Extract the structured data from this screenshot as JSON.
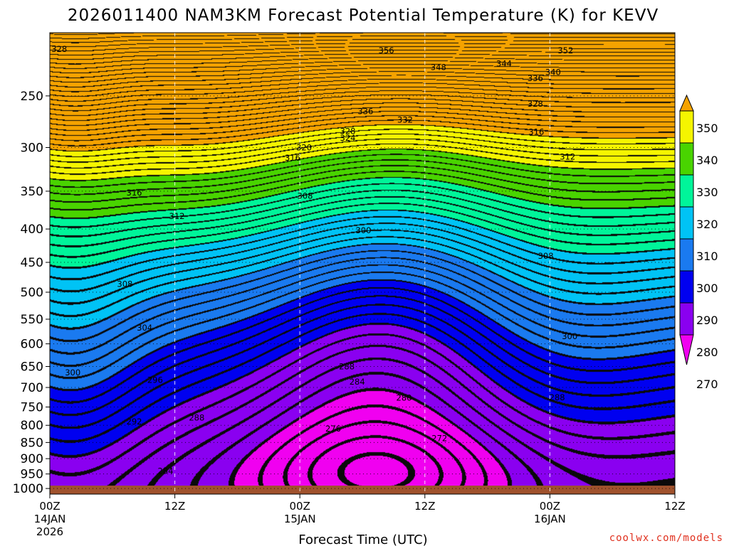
{
  "chart_data": {
    "type": "heatmap",
    "title": "2026011400 NAM3KM Forecast Potential Temperature (K) for KEVV",
    "xlabel": "Forecast Time (UTC)",
    "ylabel": "",
    "credit": "coolwx.com/models",
    "y_axis": {
      "ticks": [
        250,
        300,
        350,
        400,
        450,
        500,
        550,
        600,
        650,
        700,
        750,
        800,
        850,
        900,
        950,
        1000
      ],
      "range": [
        200,
        1020
      ],
      "scale": "log-pressure"
    },
    "x_axis": {
      "ticks": [
        {
          "hours": 0,
          "line1": "00Z",
          "line2": "14JAN",
          "line3": "2026"
        },
        {
          "hours": 12,
          "line1": "12Z",
          "line2": "",
          "line3": ""
        },
        {
          "hours": 24,
          "line1": "00Z",
          "line2": "15JAN",
          "line3": ""
        },
        {
          "hours": 36,
          "line1": "12Z",
          "line2": "",
          "line3": ""
        },
        {
          "hours": 48,
          "line1": "00Z",
          "line2": "16JAN",
          "line3": ""
        },
        {
          "hours": 60,
          "line1": "12Z",
          "line2": "",
          "line3": ""
        }
      ],
      "range": [
        0,
        60
      ]
    },
    "colorbar": {
      "labels": [
        350,
        340,
        330,
        320,
        310,
        300,
        290,
        280,
        270
      ],
      "colors": [
        "#f5a300",
        "#f5f500",
        "#49d400",
        "#00f59a",
        "#00c3f5",
        "#1a7af0",
        "#0000f0",
        "#8a00f0",
        "#f000f0"
      ],
      "bands": [
        {
          "lo": 350,
          "hi": 360,
          "color": "#f5a300"
        },
        {
          "lo": 340,
          "hi": 350,
          "color": "#f5f500"
        },
        {
          "lo": 330,
          "hi": 340,
          "color": "#49d400"
        },
        {
          "lo": 320,
          "hi": 330,
          "color": "#00f59a"
        },
        {
          "lo": 310,
          "hi": 320,
          "color": "#00c3f5"
        },
        {
          "lo": 300,
          "hi": 310,
          "color": "#1a7af0"
        },
        {
          "lo": 290,
          "hi": 300,
          "color": "#0000f0"
        },
        {
          "lo": 280,
          "hi": 290,
          "color": "#8a00f0"
        },
        {
          "lo": 270,
          "hi": 280,
          "color": "#f000f0"
        }
      ]
    },
    "contour_interval": 2,
    "contour_labels": [
      {
        "label": "328",
        "h": 0.9,
        "p": 212
      },
      {
        "label": "356",
        "h": 32.3,
        "p": 213
      },
      {
        "label": "352",
        "h": 49.5,
        "p": 213
      },
      {
        "label": "348",
        "h": 37.3,
        "p": 226
      },
      {
        "label": "344",
        "h": 43.6,
        "p": 223
      },
      {
        "label": "340",
        "h": 48.3,
        "p": 230
      },
      {
        "label": "336",
        "h": 46.6,
        "p": 235
      },
      {
        "label": "328",
        "h": 46.6,
        "p": 257
      },
      {
        "label": "336",
        "h": 30.3,
        "p": 264
      },
      {
        "label": "332",
        "h": 34.1,
        "p": 272
      },
      {
        "label": "328",
        "h": 28.6,
        "p": 283
      },
      {
        "label": "324",
        "h": 28.6,
        "p": 290
      },
      {
        "label": "320",
        "h": 24.4,
        "p": 300
      },
      {
        "label": "316",
        "h": 46.7,
        "p": 284
      },
      {
        "label": "316",
        "h": 23.3,
        "p": 311
      },
      {
        "label": "312",
        "h": 49.7,
        "p": 310
      },
      {
        "label": "316",
        "h": 8.1,
        "p": 352
      },
      {
        "label": "308",
        "h": 24.5,
        "p": 356
      },
      {
        "label": "312",
        "h": 12.2,
        "p": 382
      },
      {
        "label": "300",
        "h": 30.1,
        "p": 402
      },
      {
        "label": "308",
        "h": 47.6,
        "p": 440
      },
      {
        "label": "308",
        "h": 7.2,
        "p": 486
      },
      {
        "label": "304",
        "h": 9.1,
        "p": 567
      },
      {
        "label": "300",
        "h": 49.9,
        "p": 584
      },
      {
        "label": "300",
        "h": 2.2,
        "p": 664
      },
      {
        "label": "288",
        "h": 28.5,
        "p": 650
      },
      {
        "label": "296",
        "h": 10.1,
        "p": 682
      },
      {
        "label": "284",
        "h": 29.5,
        "p": 686
      },
      {
        "label": "288",
        "h": 48.7,
        "p": 725
      },
      {
        "label": "280",
        "h": 34.0,
        "p": 726
      },
      {
        "label": "292",
        "h": 8.1,
        "p": 790
      },
      {
        "label": "288",
        "h": 14.1,
        "p": 779
      },
      {
        "label": "276",
        "h": 27.2,
        "p": 810
      },
      {
        "label": "272",
        "h": 37.4,
        "p": 838
      },
      {
        "label": "284",
        "h": 11.1,
        "p": 940
      }
    ]
  }
}
